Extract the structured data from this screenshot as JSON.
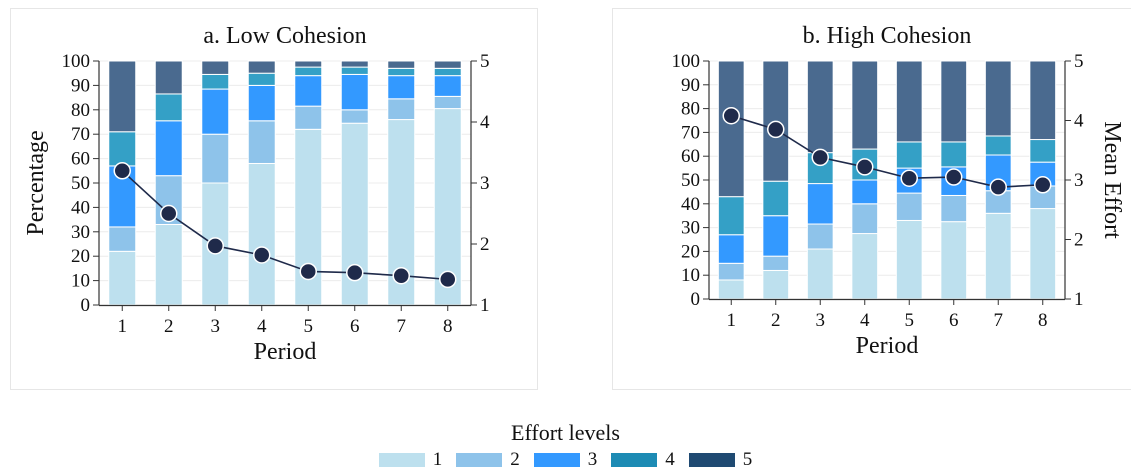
{
  "legend": {
    "title": "Effort levels",
    "items": [
      {
        "label": "1",
        "color": "#bde0ee"
      },
      {
        "label": "2",
        "color": "#8ec3ea"
      },
      {
        "label": "3",
        "color": "#3399ff"
      },
      {
        "label": "4",
        "color": "#1d8bb4"
      },
      {
        "label": "5",
        "color": "#1f4a72"
      }
    ]
  },
  "chart_data": [
    {
      "type": "bar",
      "subtype": "stacked-100 with line overlay",
      "title": "a. Low Cohesion",
      "xlabel": "Period",
      "ylabel": "Percentage",
      "y2label": "",
      "categories": [
        "1",
        "2",
        "3",
        "4",
        "5",
        "6",
        "7",
        "8"
      ],
      "ylim": [
        0,
        100
      ],
      "yticks": [
        0,
        10,
        20,
        30,
        40,
        50,
        60,
        70,
        80,
        90,
        100
      ],
      "y2lim": [
        1,
        5
      ],
      "y2ticks": [
        1,
        2,
        3,
        4,
        5
      ],
      "grid": true,
      "series": [
        {
          "name": "1",
          "color": "#bde0ee",
          "values": [
            22,
            33,
            50,
            58,
            72,
            74.5,
            76,
            80.5
          ]
        },
        {
          "name": "2",
          "color": "#8ec3ea",
          "values": [
            10,
            20,
            20,
            17.5,
            9.5,
            5.5,
            8.5,
            5
          ]
        },
        {
          "name": "3",
          "color": "#3399ff",
          "values": [
            25,
            22.5,
            18.5,
            14.5,
            12.5,
            14.5,
            9.5,
            8.5
          ]
        },
        {
          "name": "4",
          "color": "#34a0c6",
          "values": [
            14,
            11,
            6,
            5,
            3.5,
            3,
            3,
            3
          ]
        },
        {
          "name": "5",
          "color": "#4a6a8f",
          "values": [
            29,
            13.5,
            5.5,
            5,
            2.5,
            2.5,
            3,
            3
          ]
        }
      ],
      "line": {
        "name": "Mean Effort",
        "color": "#1f2a4a",
        "values": [
          3.2,
          2.5,
          1.97,
          1.82,
          1.55,
          1.53,
          1.48,
          1.42
        ]
      }
    },
    {
      "type": "bar",
      "subtype": "stacked-100 with line overlay",
      "title": "b. High Cohesion",
      "xlabel": "Period",
      "ylabel": "",
      "y2label": "Mean Effort",
      "categories": [
        "1",
        "2",
        "3",
        "4",
        "5",
        "6",
        "7",
        "8"
      ],
      "ylim": [
        0,
        100
      ],
      "yticks": [
        0,
        10,
        20,
        30,
        40,
        50,
        60,
        70,
        80,
        90,
        100
      ],
      "y2lim": [
        1,
        5
      ],
      "y2ticks": [
        1,
        2,
        3,
        4,
        5
      ],
      "grid": true,
      "series": [
        {
          "name": "1",
          "color": "#bde0ee",
          "values": [
            8,
            12,
            21,
            27.5,
            33,
            32.5,
            36,
            38
          ]
        },
        {
          "name": "2",
          "color": "#8ec3ea",
          "values": [
            7,
            6,
            10.5,
            12.5,
            11.5,
            11,
            9.5,
            9.5
          ]
        },
        {
          "name": "3",
          "color": "#3399ff",
          "values": [
            12,
            17,
            17,
            10,
            10.5,
            12,
            15,
            10
          ]
        },
        {
          "name": "4",
          "color": "#34a0c6",
          "values": [
            16,
            14.5,
            13,
            13,
            11,
            10.5,
            8,
            9.5
          ]
        },
        {
          "name": "5",
          "color": "#4a6a8f",
          "values": [
            57,
            50.5,
            38.5,
            37,
            34,
            34,
            31.5,
            33
          ]
        }
      ],
      "line": {
        "name": "Mean Effort",
        "color": "#1f2a4a",
        "values": [
          4.08,
          3.85,
          3.38,
          3.22,
          3.03,
          3.05,
          2.88,
          2.92
        ]
      }
    }
  ]
}
